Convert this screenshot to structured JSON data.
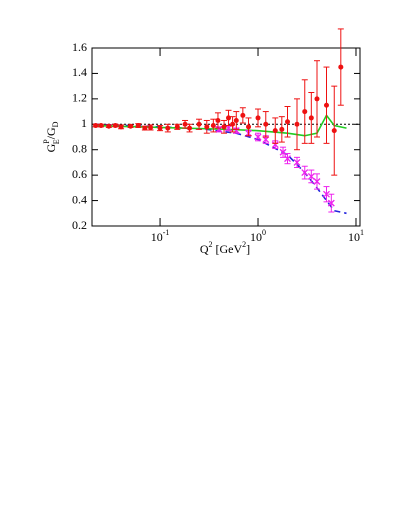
{
  "chart_data": {
    "type": "errorbar",
    "x_label": {
      "base": "Q",
      "exp": "2",
      "unit": " [GeV",
      "unit_exp": "2",
      "close": "]"
    },
    "y_label": {
      "g1": "G",
      "sup": "P",
      "sub1": "E",
      "g2": "/G",
      "sub2": "D"
    },
    "log_x": true,
    "xlim": [
      0.0202,
      10.99
    ],
    "ylim": [
      0.2,
      1.6
    ],
    "xticks": [
      {
        "value": 0.1,
        "label": "10",
        "exponent": "-1"
      },
      {
        "value": 1,
        "label": "10",
        "exponent": "0"
      },
      {
        "value": 10,
        "label": "10",
        "exponent": "1"
      }
    ],
    "yticks": [
      0.2,
      0.4,
      0.6,
      0.8,
      1,
      {
        "value": 1.2,
        "label": "1.2"
      },
      {
        "value": 1.4,
        "label": "1.4"
      },
      {
        "value": 1.6,
        "label": "1.6"
      }
    ],
    "reference_line": 1,
    "series": [
      {
        "color": "#ee1111",
        "marker": "dot",
        "x": [
          0.022,
          0.025,
          0.03,
          0.035,
          0.04,
          0.05,
          0.06,
          0.07,
          0.08,
          0.1,
          0.12,
          0.15,
          0.18,
          0.2,
          0.25,
          0.3,
          0.35,
          0.39,
          0.45,
          0.5,
          0.55,
          0.6,
          0.7,
          0.8,
          1.0,
          1.2,
          1.5,
          1.75,
          2.0,
          2.5,
          3.0,
          3.5,
          4.0,
          5.0,
          6.0,
          7.0
        ],
        "values": [
          0.99,
          0.99,
          0.985,
          0.99,
          0.98,
          0.985,
          0.99,
          0.97,
          0.975,
          0.97,
          0.97,
          0.98,
          1.0,
          0.97,
          1.0,
          0.98,
          0.99,
          1.03,
          0.98,
          1.05,
          1.0,
          1.03,
          1.07,
          0.98,
          1.05,
          1.0,
          0.95,
          0.96,
          1.02,
          1.0,
          1.1,
          1.05,
          1.2,
          1.15,
          0.95,
          1.45
        ],
        "errors": [
          0.01,
          0.01,
          0.01,
          0.01,
          0.015,
          0.01,
          0.015,
          0.015,
          0.02,
          0.02,
          0.03,
          0.02,
          0.03,
          0.03,
          0.04,
          0.05,
          0.05,
          0.06,
          0.05,
          0.06,
          0.06,
          0.07,
          0.06,
          0.07,
          0.07,
          0.1,
          0.1,
          0.1,
          0.12,
          0.2,
          0.25,
          0.2,
          0.3,
          0.3,
          0.35,
          0.3
        ]
      },
      {
        "color": "#ee22ee",
        "marker": "cross",
        "x": [
          0.4,
          0.5,
          0.6,
          0.8,
          1.0,
          1.2,
          1.5,
          1.8,
          2.0,
          2.5,
          3.0,
          3.5,
          4.0,
          5.0,
          5.6
        ],
        "values": [
          0.96,
          0.97,
          0.95,
          0.93,
          0.9,
          0.88,
          0.84,
          0.78,
          0.73,
          0.7,
          0.62,
          0.59,
          0.55,
          0.45,
          0.38
        ],
        "errors": [
          0.02,
          0.02,
          0.02,
          0.02,
          0.03,
          0.03,
          0.03,
          0.04,
          0.04,
          0.04,
          0.05,
          0.05,
          0.06,
          0.06,
          0.07
        ]
      },
      {
        "color": "#2222dd",
        "marker": "dashed-line",
        "x": [
          0.022,
          0.1,
          0.3,
          0.6,
          1,
          2,
          3,
          4,
          5,
          6,
          8
        ],
        "values": [
          1.0,
          0.98,
          0.96,
          0.93,
          0.88,
          0.76,
          0.62,
          0.5,
          0.4,
          0.32,
          0.3
        ]
      },
      {
        "color": "#22cc22",
        "marker": "line",
        "x": [
          0.022,
          0.1,
          0.5,
          1,
          2,
          3,
          4,
          5,
          6,
          8
        ],
        "values": [
          0.99,
          0.975,
          0.96,
          0.95,
          0.93,
          0.91,
          0.93,
          1.07,
          0.99,
          0.97
        ]
      }
    ]
  }
}
